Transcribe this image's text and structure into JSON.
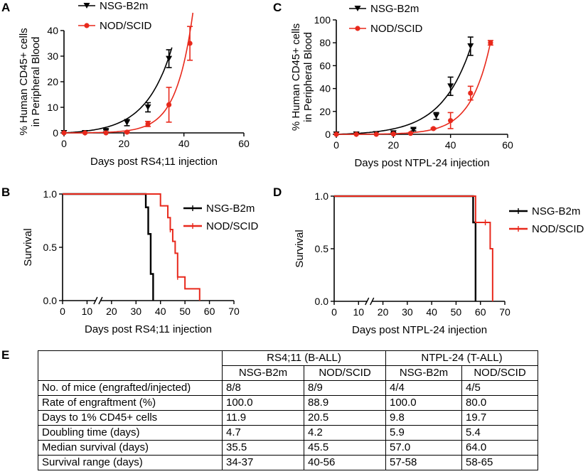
{
  "panels": {
    "A": "A",
    "B": "B",
    "C": "C",
    "D": "D",
    "E": "E"
  },
  "colors": {
    "nsg": "#000000",
    "nod": "#e8291c"
  },
  "chart_data": [
    {
      "id": "A",
      "type": "line",
      "title": "",
      "xlabel": "Days post RS4;11 injection",
      "ylabel": [
        "% Human CD45+ cells",
        "in Peripheral Blood"
      ],
      "xlim": [
        0,
        60
      ],
      "ylim": [
        0,
        40
      ],
      "xticks": [
        "0",
        "20",
        "40",
        "60"
      ],
      "yticks": [
        "0",
        "10",
        "20",
        "30",
        "40"
      ],
      "series": [
        {
          "name": "NSG-B2m",
          "marker": "triangle-down",
          "points": [
            [
              0,
              0
            ],
            [
              7,
              0
            ],
            [
              14,
              0.8
            ],
            [
              21,
              4
            ],
            [
              28,
              10
            ],
            [
              35,
              29
            ]
          ],
          "err": [
            0,
            0,
            0.4,
            1.2,
            1.8,
            3.5
          ],
          "fit": {
            "a": 0.55,
            "k": 0.1145,
            "xmax": 36
          }
        },
        {
          "name": "NOD/SCID",
          "marker": "circle",
          "points": [
            [
              0,
              0
            ],
            [
              7,
              0
            ],
            [
              14,
              0
            ],
            [
              21,
              0.3
            ],
            [
              28,
              3.5
            ],
            [
              35,
              11
            ],
            [
              42,
              35
            ]
          ],
          "err": [
            0,
            0,
            0,
            0.2,
            1.0,
            6.8,
            6.6
          ],
          "fit": {
            "a": 0.02,
            "k": 0.1805,
            "xmax": 43
          }
        }
      ]
    },
    {
      "id": "C",
      "type": "line",
      "title": "",
      "xlabel": "Days post NTPL-24 injection",
      "ylabel": [
        "% Human CD45+ cells",
        "in Peripheral Blood"
      ],
      "xlim": [
        0,
        60
      ],
      "ylim": [
        0,
        100
      ],
      "xticks": [
        "0",
        "20",
        "40",
        "60"
      ],
      "yticks": [
        "0",
        "20",
        "40",
        "60",
        "80",
        "100"
      ],
      "series": [
        {
          "name": "NSG-B2m",
          "marker": "triangle-down",
          "points": [
            [
              0,
              0
            ],
            [
              7,
              0
            ],
            [
              14,
              0.3
            ],
            [
              20,
              1
            ],
            [
              27,
              4
            ],
            [
              35,
              16
            ],
            [
              40,
              42
            ],
            [
              47,
              77
            ]
          ],
          "err": [
            0,
            0,
            0,
            0.5,
            1,
            3,
            8,
            8
          ],
          "fit": {
            "a": 0.8,
            "k": 0.097,
            "xmax": 47
          }
        },
        {
          "name": "NOD/SCID",
          "marker": "circle",
          "points": [
            [
              0,
              0
            ],
            [
              7,
              0
            ],
            [
              14,
              0
            ],
            [
              20,
              0.3
            ],
            [
              26,
              0.8
            ],
            [
              34,
              5
            ],
            [
              40,
              12
            ],
            [
              47,
              36
            ],
            [
              54,
              80
            ]
          ],
          "err": [
            0,
            0,
            0,
            0,
            0,
            0.5,
            7,
            6,
            2
          ],
          "fit": {
            "a": 0.032,
            "k": 0.145,
            "xmax": 54
          }
        }
      ]
    },
    {
      "id": "B",
      "type": "line",
      "title": "",
      "xlabel": "Days post RS4;11 injection",
      "ylabel": [
        "Survival"
      ],
      "xlim": [
        0,
        70
      ],
      "ylim": [
        0,
        1
      ],
      "xticks": [
        "0",
        "10",
        "20",
        "30",
        "40",
        "50",
        "60",
        "70"
      ],
      "yticks": [
        "0.0",
        "0.5",
        "1.0"
      ],
      "series": [
        {
          "name": "NSG-B2m",
          "steps": [
            [
              0,
              1.0
            ],
            [
              34,
              0.875
            ],
            [
              35,
              0.625
            ],
            [
              36,
              0.25
            ],
            [
              37,
              0.0
            ]
          ],
          "end": 37
        },
        {
          "name": "NOD/SCID",
          "steps": [
            [
              0,
              1.0
            ],
            [
              40,
              0.889
            ],
            [
              43,
              0.778
            ],
            [
              44,
              0.667
            ],
            [
              45,
              0.556
            ],
            [
              46,
              0.444
            ],
            [
              47,
              0.222
            ],
            [
              50,
              0.111
            ],
            [
              56,
              0.0
            ]
          ],
          "end": 56,
          "censor": [
            [
              44,
              0.667
            ],
            [
              47,
              0.222
            ]
          ]
        }
      ]
    },
    {
      "id": "D",
      "type": "line",
      "title": "",
      "xlabel": "Days post NTPL-24 injection",
      "ylabel": [
        "Survival"
      ],
      "xlim": [
        0,
        70
      ],
      "ylim": [
        0,
        1
      ],
      "xticks": [
        "0",
        "10",
        "20",
        "30",
        "40",
        "50",
        "60",
        "70"
      ],
      "yticks": [
        "0.0",
        "0.5",
        "1.0"
      ],
      "series": [
        {
          "name": "NSG-B2m",
          "steps": [
            [
              0,
              1.0
            ],
            [
              57,
              0.75
            ],
            [
              58,
              0.0
            ]
          ],
          "end": 58
        },
        {
          "name": "NOD/SCID",
          "steps": [
            [
              0,
              1.0
            ],
            [
              58,
              0.75
            ],
            [
              64,
              0.5
            ],
            [
              65,
              0.0
            ]
          ],
          "end": 65,
          "censor": [
            [
              62,
              0.75
            ]
          ]
        }
      ]
    }
  ],
  "table": {
    "groups": [
      "RS4;11 (B-ALL)",
      "NTPL-24 (T-ALL)"
    ],
    "subheaders": [
      "NSG-B2m",
      "NOD/SCID",
      "NSG-B2m",
      "NOD/SCID"
    ],
    "rows": [
      {
        "label": "No. of mice (engrafted/injected)",
        "values": [
          "8/8",
          "8/9",
          "4/4",
          "4/5"
        ]
      },
      {
        "label": "Rate of engraftment (%)",
        "values": [
          "100.0",
          "88.9",
          "100.0",
          "80.0"
        ]
      },
      {
        "label": "Days to 1% CD45+ cells",
        "values": [
          "11.9",
          "20.5",
          "9.8",
          "19.7"
        ]
      },
      {
        "label": "Doubling time (days)",
        "values": [
          "4.7",
          "4.2",
          "5.9",
          "5.4"
        ]
      },
      {
        "label": "Median survival (days)",
        "values": [
          "35.5",
          "45.5",
          "57.0",
          "64.0"
        ]
      },
      {
        "label": "Survival range (days)",
        "values": [
          "34-37",
          "40-56",
          "57-58",
          "58-65"
        ]
      }
    ]
  }
}
